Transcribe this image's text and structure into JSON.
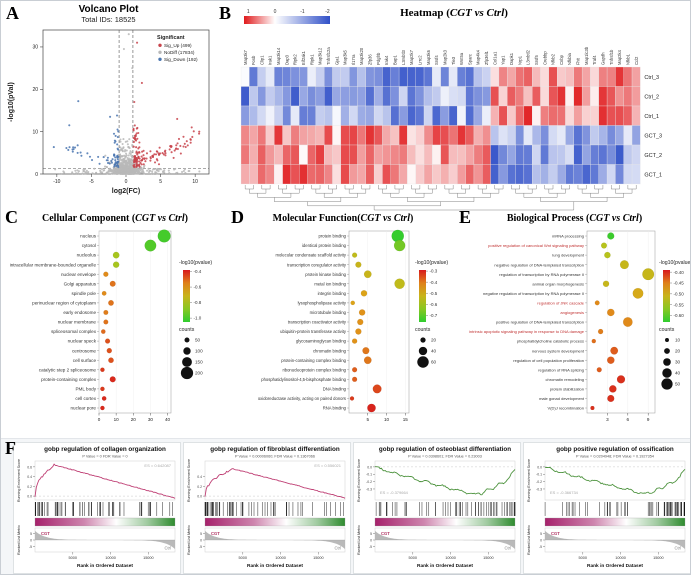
{
  "figure": {
    "background": "#ffffff"
  },
  "panels": {
    "A": {
      "label": "A"
    },
    "B": {
      "label": "B",
      "title_prefix": "Heatmap (",
      "title_italic": "CGT vs Ctrl",
      "title_suffix": ")"
    },
    "C": {
      "label": "C",
      "title_prefix": "Cellular Component (",
      "title_italic": "CGT vs Ctrl",
      "title_suffix": ")"
    },
    "D": {
      "label": "D",
      "title_prefix": "Molecular Function(",
      "title_italic": "CGT vs Ctrl",
      "title_suffix": ")"
    },
    "E": {
      "label": "E",
      "title_prefix": "Biological Process (",
      "title_italic": "CGT vs Ctrl",
      "title_suffix": ")"
    },
    "F": {
      "label": "F"
    }
  },
  "chart_data": {
    "volcano": {
      "type": "scatter",
      "title": "Volcano Plot",
      "subtitle": "Total IDs: 18525",
      "xlabel": "log2(FC)",
      "ylabel": "-log10(pVal)",
      "xlim": [
        -12,
        12
      ],
      "ylim": [
        0,
        34
      ],
      "x_ticks": [
        -10,
        -5,
        0,
        5,
        10
      ],
      "y_ticks": [
        0,
        10,
        20,
        30
      ],
      "fc_thresholds": [
        -1,
        1
      ],
      "p_threshold": 1.3,
      "legend_title": "Significant",
      "series": [
        {
          "name": "Sig_Up (499)",
          "color": "#c8434b",
          "n": 499
        },
        {
          "name": "NoDiff (17834)",
          "color": "#b9b9b9",
          "n": 17834
        },
        {
          "name": "Sig_Down (192)",
          "color": "#4a76b0",
          "n": 192
        }
      ],
      "outliers": {
        "gray": [
          [
            0.4,
            33
          ],
          [
            -0.3,
            29.5
          ],
          [
            0.9,
            25
          ]
        ],
        "red": [
          [
            1.6,
            31
          ],
          [
            2.3,
            21.5
          ],
          [
            1.2,
            17
          ],
          [
            7.4,
            13
          ],
          [
            9.5,
            11
          ]
        ],
        "blue": [
          [
            -6.9,
            17.2
          ],
          [
            -2.3,
            13.5
          ],
          [
            -1.3,
            13.8
          ],
          [
            -8.2,
            11.5
          ]
        ]
      }
    },
    "heatmap": {
      "type": "heatmap",
      "rows": [
        "Ctrl_3",
        "Ctrl_2",
        "Ctrl_1",
        "GCT_3",
        "GCT_2",
        "GCT_1"
      ],
      "genes": [
        "Map3k7",
        "Fosb",
        "Clip1",
        "Irak1",
        "Map3k14",
        "Dap3",
        "Ripk2",
        "Eif2ak1",
        "Ripk1",
        "Map3k12",
        "Tnfrsf12a",
        "Gja1",
        "Map3k5",
        "Il17ra",
        "Map3k20",
        "Zfp36",
        "Pdgfrb",
        "Irak4",
        "Bap1",
        "L3mbtl3",
        "Map2k7",
        "Lrrc2",
        "Map3k6",
        "Srsf4",
        "Map2k3",
        "Tle3",
        "Wnt5a",
        "Sparc",
        "Map4k4",
        "Zfp36l1",
        "Col1a1",
        "Yap1",
        "Dapk1",
        "Nrp1",
        "L3mbtl2",
        "Srsf5",
        "Crebbp",
        "Nfkb2",
        "Cnbp",
        "Nfkbia",
        "Fhit",
        "Map1lc3b",
        "Traf4",
        "Gapdh",
        "Tnfrsf1b",
        "Map2k4",
        "Nfkb1",
        "Ccl2"
      ],
      "colorbar_ticks": [
        "1",
        "0",
        "-1",
        "-2"
      ],
      "colors": {
        "high": "#e01a1c",
        "mid": "#ffffff",
        "low": "#3050c8"
      },
      "split_index": 30,
      "seed": 7
    },
    "cellular_component": {
      "type": "dot",
      "x_ticks": [
        "0",
        "10",
        "20",
        "30",
        "40"
      ],
      "x_tick_vals": [
        0,
        10,
        20,
        30,
        40
      ],
      "xlim": [
        0,
        42
      ],
      "color_legend": {
        "title": "-log10(pvalue)",
        "tick_labels": [
          "-0.4",
          "-0.6",
          "-0.8",
          "-1.0"
        ],
        "tick_vals": [
          -0.4,
          -0.6,
          -0.8,
          -1.0
        ],
        "vmin": -1.05,
        "vmax": -0.38
      },
      "size_legend": {
        "title": "counts",
        "values": [
          50,
          100,
          150,
          200
        ],
        "cmin": 30,
        "cmax": 215,
        "rmin": 2.0,
        "rmax": 6.5
      },
      "items": [
        {
          "label": "nucleus",
          "x": 38,
          "count": 210,
          "v": -1.0
        },
        {
          "label": "cytosol",
          "x": 30,
          "count": 185,
          "v": -0.97
        },
        {
          "label": "nucleolus",
          "x": 10,
          "count": 80,
          "v": -0.78
        },
        {
          "label": "intracellular membrane-bounded organelle",
          "x": 10,
          "count": 75,
          "v": -0.78
        },
        {
          "label": "nuclear envelope",
          "x": 4,
          "count": 50,
          "v": -0.55
        },
        {
          "label": "Golgi apparatus",
          "x": 8,
          "count": 65,
          "v": -0.5
        },
        {
          "label": "spindle pole",
          "x": 3,
          "count": 40,
          "v": -0.55
        },
        {
          "label": "perinuclear region of cytoplasm",
          "x": 7,
          "count": 60,
          "v": -0.5
        },
        {
          "label": "early endosome",
          "x": 4,
          "count": 45,
          "v": -0.52
        },
        {
          "label": "nuclear membrane",
          "x": 4,
          "count": 45,
          "v": -0.5
        },
        {
          "label": "spliceosomal complex",
          "x": 2.5,
          "count": 38,
          "v": -0.48
        },
        {
          "label": "nuclear speck",
          "x": 5,
          "count": 48,
          "v": -0.45
        },
        {
          "label": "centrosome",
          "x": 6,
          "count": 52,
          "v": -0.45
        },
        {
          "label": "cell surface",
          "x": 7,
          "count": 58,
          "v": -0.45
        },
        {
          "label": "catalytic step 2 spliceosome",
          "x": 2,
          "count": 35,
          "v": -0.42
        },
        {
          "label": "protein-containing complex",
          "x": 8,
          "count": 68,
          "v": -0.4
        },
        {
          "label": "PML body",
          "x": 2,
          "count": 35,
          "v": -0.42
        },
        {
          "label": "cell cortex",
          "x": 3,
          "count": 38,
          "v": -0.4
        },
        {
          "label": "nuclear pore",
          "x": 2,
          "count": 35,
          "v": -0.4
        }
      ]
    },
    "molecular_function": {
      "type": "dot",
      "x_ticks": [
        "5",
        "10",
        "15"
      ],
      "x_tick_vals": [
        5,
        10,
        15
      ],
      "xlim": [
        0,
        16
      ],
      "color_legend": {
        "title": "-log10(pvalue)",
        "tick_labels": [
          "-0.3",
          "-0.4",
          "-0.5",
          "-0.6",
          "-0.7"
        ],
        "tick_vals": [
          -0.3,
          -0.4,
          -0.5,
          -0.6,
          -0.7
        ],
        "vmin": -0.76,
        "vmax": -0.29
      },
      "size_legend": {
        "title": "counts",
        "values": [
          20,
          40,
          60
        ],
        "cmin": 12,
        "cmax": 66,
        "rmin": 2.0,
        "rmax": 6.2
      },
      "items": [
        {
          "label": "protein binding",
          "x": 13,
          "count": 65,
          "v": -0.75
        },
        {
          "label": "identical protein binding",
          "x": 13.5,
          "count": 58,
          "v": -0.65
        },
        {
          "label": "molecular condensate scaffold activity",
          "x": 1.5,
          "count": 18,
          "v": -0.52
        },
        {
          "label": "transcription coregulator activity",
          "x": 2.5,
          "count": 24,
          "v": -0.5
        },
        {
          "label": "protein kinase binding",
          "x": 5,
          "count": 34,
          "v": -0.5
        },
        {
          "label": "metal ion binding",
          "x": 13.5,
          "count": 52,
          "v": -0.52
        },
        {
          "label": "integrin binding",
          "x": 4,
          "count": 26,
          "v": -0.45
        },
        {
          "label": "lysophospholipase activity",
          "x": 1,
          "count": 14,
          "v": -0.45
        },
        {
          "label": "microtubule binding",
          "x": 3.5,
          "count": 26,
          "v": -0.42
        },
        {
          "label": "transcription coactivator activity",
          "x": 3,
          "count": 25,
          "v": -0.42
        },
        {
          "label": "ubiquitin-protein transferase activity",
          "x": 2.5,
          "count": 25,
          "v": -0.42
        },
        {
          "label": "glycosaminoglycan binding",
          "x": 1.5,
          "count": 19,
          "v": -0.42
        },
        {
          "label": "chromatin binding",
          "x": 4.5,
          "count": 30,
          "v": -0.38
        },
        {
          "label": "protein-containing complex binding",
          "x": 5,
          "count": 34,
          "v": -0.38
        },
        {
          "label": "ribonucleoprotein complex binding",
          "x": 1.5,
          "count": 18,
          "v": -0.35
        },
        {
          "label": "phosphatidylinositol-4,5-bisphosphate binding",
          "x": 1.5,
          "count": 18,
          "v": -0.35
        },
        {
          "label": "DNA binding",
          "x": 7.5,
          "count": 42,
          "v": -0.33
        },
        {
          "label": "oxidoreductase activity, acting on paired donors",
          "x": 0.8,
          "count": 13,
          "v": -0.32
        },
        {
          "label": "RNA binding",
          "x": 6,
          "count": 40,
          "v": -0.3
        }
      ]
    },
    "biological_process": {
      "type": "dot",
      "x_ticks": [
        "3",
        "6",
        "9"
      ],
      "x_tick_vals": [
        3,
        6,
        9
      ],
      "xlim": [
        0,
        10
      ],
      "color_legend": {
        "title": "-log10(pvalue)",
        "tick_labels": [
          "-0.40",
          "-0.45",
          "-0.50",
          "-0.55",
          "-0.60"
        ],
        "tick_vals": [
          -0.4,
          -0.45,
          -0.5,
          -0.55,
          -0.6
        ],
        "vmin": -0.63,
        "vmax": -0.39
      },
      "size_legend": {
        "title": "counts",
        "values": [
          10,
          20,
          30,
          40,
          50
        ],
        "cmin": 8,
        "cmax": 54,
        "rmin": 1.8,
        "rmax": 6.0
      },
      "items": [
        {
          "label": "mRNA processing",
          "x": 3.5,
          "count": 26,
          "v": -0.62
        },
        {
          "label": "positive regulation of canonical Wnt signaling pathway",
          "x": 2.5,
          "count": 20,
          "v": -0.52,
          "red": true
        },
        {
          "label": "lung development",
          "x": 3,
          "count": 22,
          "v": -0.52
        },
        {
          "label": "negative regulation of DNA-templated transcription",
          "x": 5.5,
          "count": 36,
          "v": -0.5
        },
        {
          "label": "regulation of transcription by RNA polymerase II",
          "x": 9,
          "count": 52,
          "v": -0.5
        },
        {
          "label": "animal organ morphogenesis",
          "x": 2.8,
          "count": 22,
          "v": -0.5
        },
        {
          "label": "negative regulation of transcription by RNA polymerase II",
          "x": 7.5,
          "count": 46,
          "v": -0.48
        },
        {
          "label": "regulation of JNK cascade",
          "x": 1.5,
          "count": 14,
          "v": -0.45,
          "red": true
        },
        {
          "label": "angiogenesis",
          "x": 3.5,
          "count": 28,
          "v": -0.45,
          "red": true
        },
        {
          "label": "positive regulation of DNA-templated transcription",
          "x": 6,
          "count": 40,
          "v": -0.45
        },
        {
          "label": "intrinsic apoptotic signaling pathway in response to DNA damage",
          "x": 2,
          "count": 16,
          "v": -0.44,
          "red": true
        },
        {
          "label": "phosphatidylcholine catabolic process",
          "x": 1,
          "count": 11,
          "v": -0.43
        },
        {
          "label": "nervous system development",
          "x": 4,
          "count": 30,
          "v": -0.42
        },
        {
          "label": "regulation of cell population proliferation",
          "x": 3.5,
          "count": 28,
          "v": -0.42
        },
        {
          "label": "regulation of RNA splicing",
          "x": 1.8,
          "count": 15,
          "v": -0.42
        },
        {
          "label": "chromatin remodeling",
          "x": 5,
          "count": 32,
          "v": -0.4
        },
        {
          "label": "protein stabilization",
          "x": 3.8,
          "count": 28,
          "v": -0.4
        },
        {
          "label": "male gonad development",
          "x": 3.5,
          "count": 26,
          "v": -0.4
        },
        {
          "label": "V(D)J recombination",
          "x": 0.8,
          "count": 10,
          "v": -0.4
        }
      ]
    },
    "gsea": {
      "type": "line",
      "common": {
        "ylabel": "Running Enrichment Score",
        "ylabel2": "Ranked List Metric",
        "xlabel": "Rank in Ordered Dataset",
        "x_ticks": [
          "5000",
          "10000",
          "15000"
        ],
        "x_tick_vals": [
          5000,
          10000,
          15000
        ],
        "total_rank": 18525,
        "group_left": "CGT",
        "group_right": "Ctrl",
        "metric_ticks": [
          "5",
          "0",
          "-5"
        ],
        "metric_tick_vals": [
          5,
          0,
          -5
        ]
      },
      "plots": [
        {
          "title": "gobp regulation of collagen organization",
          "subtitle": "P Value = 0  FDR Value = 0",
          "es_label": "ES = 0.642087",
          "direction": "up",
          "color": "#bf3f74",
          "peak": 0.64,
          "peak_frac": 0.14,
          "y_ticks": [
            "0.0",
            "0.2",
            "0.4",
            "0.6"
          ],
          "y_tick_vals": [
            0.0,
            0.2,
            0.4,
            0.6
          ]
        },
        {
          "title": "gobp regulation of fibroblast differentiation",
          "subtitle": "P Value = 0.00006060; FDR Value = 0.1367066",
          "es_label": "ES = 0.556021",
          "direction": "up",
          "color": "#bf3f74",
          "peak": 0.56,
          "peak_frac": 0.2,
          "y_ticks": [
            "0.0",
            "0.2",
            "0.4"
          ],
          "y_tick_vals": [
            0.0,
            0.2,
            0.4
          ]
        },
        {
          "title": "gobp regulation of osteoblast differentiation",
          "subtitle": "P Value = 0.0398601; FDR Value = 0.23003",
          "es_label": "ES = -0.379664",
          "direction": "down",
          "color": "#4f9440",
          "peak": -0.38,
          "peak_frac": 0.72,
          "y_ticks": [
            "-0.3",
            "-0.2",
            "-0.1",
            "0.0"
          ],
          "y_tick_vals": [
            -0.3,
            -0.2,
            -0.1,
            0.0
          ]
        },
        {
          "title": "gobp positive regulation of ossification",
          "subtitle": "P Value = 0.0204948; FDR Value = 0.1927354",
          "es_label": "ES = -0.366734",
          "direction": "down",
          "color": "#4f9440",
          "peak": -0.37,
          "peak_frac": 0.72,
          "y_ticks": [
            "-0.3",
            "-0.2",
            "-0.1",
            "0.0"
          ],
          "y_tick_vals": [
            -0.3,
            -0.2,
            -0.1,
            0.0
          ]
        }
      ],
      "hit_bar_colors": {
        "left": "#a6216b",
        "mid": "#ffffff",
        "right": "#2e8b2e"
      }
    }
  }
}
